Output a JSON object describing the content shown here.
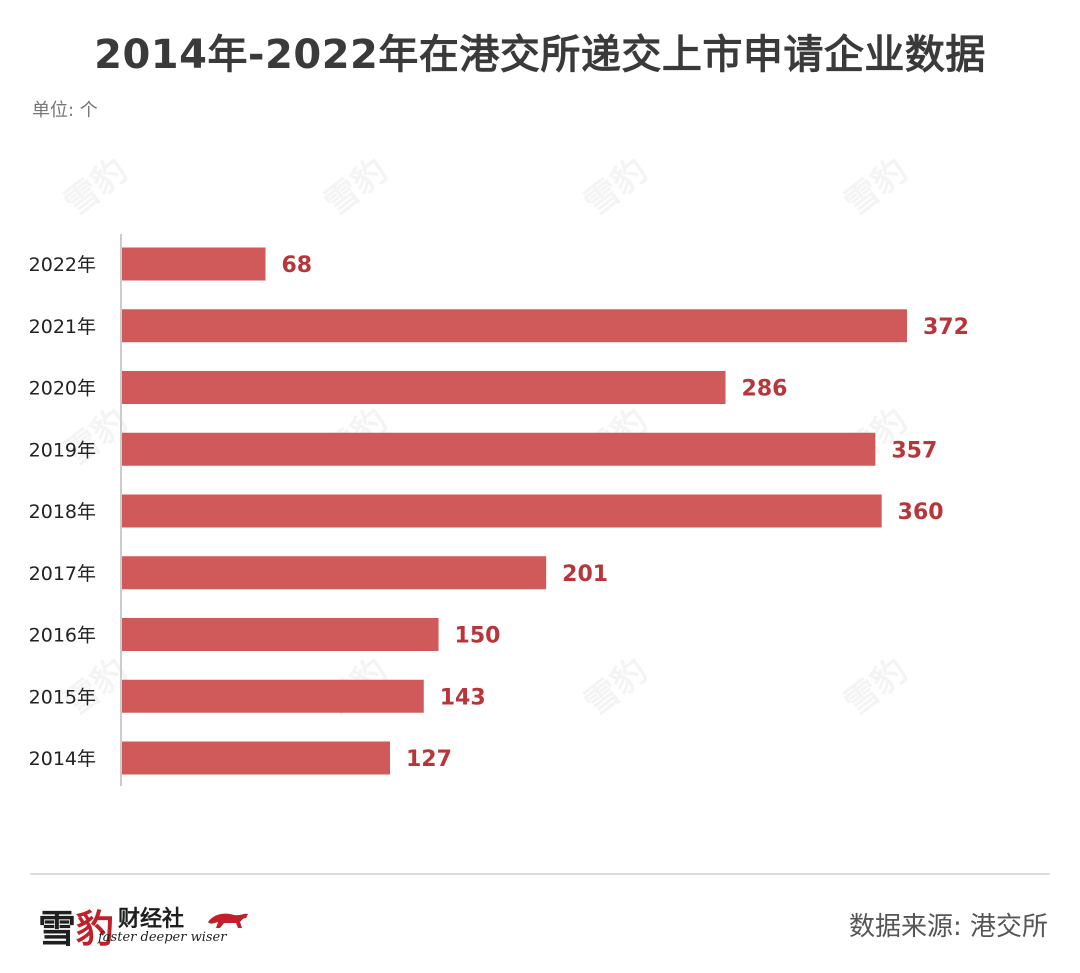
{
  "chart_data": {
    "type": "bar",
    "orientation": "horizontal",
    "title": "2014年-2022年在港交所递交上市申请企业数据",
    "unit_label": "单位: 个",
    "categories": [
      "2022年",
      "2021年",
      "2020年",
      "2019年",
      "2018年",
      "2017年",
      "2016年",
      "2015年",
      "2014年"
    ],
    "values": [
      68,
      372,
      286,
      357,
      360,
      201,
      150,
      143,
      127
    ],
    "xlim": [
      0,
      372
    ],
    "grid": false,
    "bar_color": "#d05a5a",
    "label_color": "#b8353a"
  },
  "source": "数据来源: 港交所",
  "logo": {
    "main_accent": "豹",
    "main_prefix": "雪",
    "sub": "财经社",
    "tagline": "faster deeper wiser"
  }
}
